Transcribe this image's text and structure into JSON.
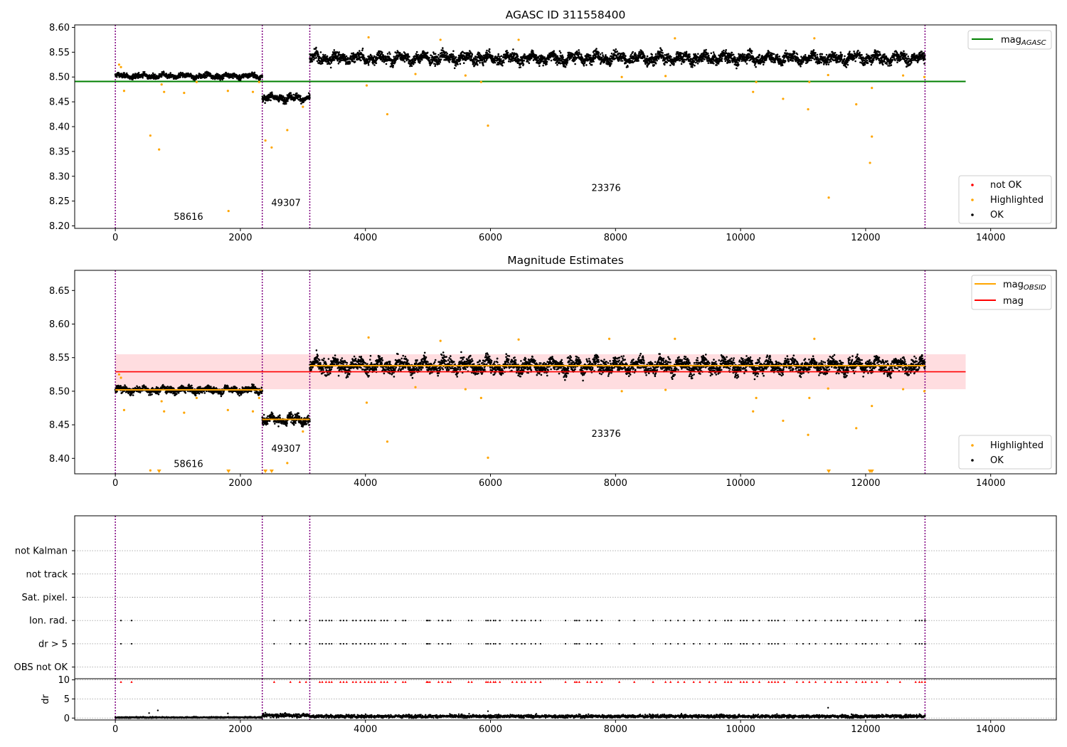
{
  "figure": {
    "title": "AGASC ID 311558400",
    "colors": {
      "ok": "#000000",
      "highlighted": "#ffa500",
      "not_ok": "#ff0000",
      "agasc_line": "#008000",
      "mag_line": "#ff0000",
      "obsid_line": "#ffa500",
      "band": "#ffdde0",
      "obs_boundary": "#800080"
    }
  },
  "chart_data": [
    {
      "type": "scatter",
      "title": "AGASC ID 311558400",
      "xlabel": "",
      "ylabel": "",
      "xlim": [
        -650,
        15050
      ],
      "ylim": [
        8.195,
        8.605
      ],
      "xticks": [
        0,
        2000,
        4000,
        6000,
        8000,
        10000,
        12000,
        14000
      ],
      "yticks": [
        8.2,
        8.25,
        8.3,
        8.35,
        8.4,
        8.45,
        8.5,
        8.55,
        8.6
      ],
      "grid": false,
      "obs_boundaries": [
        0,
        2350,
        3110,
        12950
      ],
      "segments": [
        {
          "obsid": "58616",
          "x_range": [
            0,
            2350
          ],
          "mean": 8.502,
          "scatter": 0.005
        },
        {
          "obsid": "49307",
          "x_range": [
            2350,
            3110
          ],
          "mean": 8.458,
          "scatter": 0.007
        },
        {
          "obsid": "23376",
          "x_range": [
            3110,
            12950
          ],
          "mean": 8.538,
          "scatter": 0.011
        }
      ],
      "obsid_labels": [
        {
          "text": "58616",
          "x": 1170,
          "y": 8.212
        },
        {
          "text": "49307",
          "x": 2730,
          "y": 8.24
        },
        {
          "text": "23376",
          "x": 7850,
          "y": 8.27
        }
      ],
      "reference_lines": [
        {
          "name": "mag_AGASC",
          "y": 8.491,
          "x_range": [
            0,
            13600
          ]
        }
      ],
      "highlighted_points": [
        [
          60,
          8.525
        ],
        [
          90,
          8.52
        ],
        [
          140,
          8.472
        ],
        [
          560,
          8.382
        ],
        [
          700,
          8.354
        ],
        [
          740,
          8.485
        ],
        [
          780,
          8.47
        ],
        [
          1100,
          8.468
        ],
        [
          1300,
          8.49
        ],
        [
          1800,
          8.472
        ],
        [
          1810,
          8.23
        ],
        [
          2200,
          8.47
        ],
        [
          2300,
          8.49
        ],
        [
          2400,
          8.372
        ],
        [
          2500,
          8.358
        ],
        [
          2750,
          8.393
        ],
        [
          3000,
          8.44
        ],
        [
          4020,
          8.483
        ],
        [
          4050,
          8.58
        ],
        [
          4350,
          8.425
        ],
        [
          4800,
          8.506
        ],
        [
          5200,
          8.575
        ],
        [
          5600,
          8.503
        ],
        [
          5850,
          8.49
        ],
        [
          5960,
          8.402
        ],
        [
          6450,
          8.575
        ],
        [
          8100,
          8.5
        ],
        [
          8800,
          8.502
        ],
        [
          8950,
          8.578
        ],
        [
          10200,
          8.47
        ],
        [
          10250,
          8.49
        ],
        [
          10680,
          8.456
        ],
        [
          11080,
          8.435
        ],
        [
          11100,
          8.49
        ],
        [
          11180,
          8.578
        ],
        [
          11400,
          8.504
        ],
        [
          11410,
          8.257
        ],
        [
          11850,
          8.445
        ],
        [
          12070,
          8.327
        ],
        [
          12100,
          8.38
        ],
        [
          12100,
          8.478
        ],
        [
          12600,
          8.503
        ],
        [
          12940,
          8.5
        ]
      ],
      "legends": [
        {
          "position": "upper-right",
          "entries": [
            {
              "label": "mag",
              "subscript": "AGASC",
              "kind": "line",
              "color": "#008000"
            }
          ]
        },
        {
          "position": "lower-right",
          "entries": [
            {
              "label": "not OK",
              "kind": "marker",
              "color": "#ff0000"
            },
            {
              "label": "Highlighted",
              "kind": "marker",
              "color": "#ffa500"
            },
            {
              "label": "OK",
              "kind": "marker",
              "color": "#000000"
            }
          ]
        }
      ]
    },
    {
      "type": "scatter",
      "title": "Magnitude Estimates",
      "xlabel": "",
      "ylabel": "",
      "xlim": [
        -650,
        15050
      ],
      "ylim": [
        8.377,
        8.68
      ],
      "xticks": [
        0,
        2000,
        4000,
        6000,
        8000,
        10000,
        12000,
        14000
      ],
      "yticks": [
        8.4,
        8.45,
        8.5,
        8.55,
        8.6,
        8.65
      ],
      "grid": false,
      "obs_boundaries": [
        0,
        2350,
        3110,
        12950
      ],
      "segments": [
        {
          "obsid": "58616",
          "x_range": [
            0,
            2350
          ],
          "mean": 8.502,
          "scatter": 0.005
        },
        {
          "obsid": "49307",
          "x_range": [
            2350,
            3110
          ],
          "mean": 8.458,
          "scatter": 0.007
        },
        {
          "obsid": "23376",
          "x_range": [
            3110,
            12950
          ],
          "mean": 8.538,
          "scatter": 0.011
        }
      ],
      "obsid_labels": [
        {
          "text": "58616",
          "x": 1170,
          "y": 8.387
        },
        {
          "text": "49307",
          "x": 2730,
          "y": 8.41
        },
        {
          "text": "23376",
          "x": 7850,
          "y": 8.432
        }
      ],
      "mag_line": {
        "name": "mag",
        "y": 8.529,
        "x_range": [
          0,
          13600
        ]
      },
      "mag_band": {
        "y_low": 8.503,
        "y_high": 8.555,
        "x_range": [
          0,
          13600
        ]
      },
      "obsid_means": [
        {
          "x_range": [
            0,
            2350
          ],
          "y": 8.502
        },
        {
          "x_range": [
            2350,
            3110
          ],
          "y": 8.458
        },
        {
          "x_range": [
            3110,
            12950
          ],
          "y": 8.538
        }
      ],
      "highlighted_points": [
        [
          60,
          8.525
        ],
        [
          90,
          8.52
        ],
        [
          140,
          8.472
        ],
        [
          560,
          8.382
        ],
        [
          740,
          8.485
        ],
        [
          780,
          8.47
        ],
        [
          1100,
          8.468
        ],
        [
          1300,
          8.49
        ],
        [
          1800,
          8.472
        ],
        [
          2200,
          8.47
        ],
        [
          2300,
          8.49
        ],
        [
          2750,
          8.393
        ],
        [
          3000,
          8.44
        ],
        [
          4020,
          8.483
        ],
        [
          4050,
          8.58
        ],
        [
          4350,
          8.425
        ],
        [
          4800,
          8.506
        ],
        [
          5200,
          8.575
        ],
        [
          5600,
          8.503
        ],
        [
          5850,
          8.49
        ],
        [
          5960,
          8.401
        ],
        [
          6450,
          8.577
        ],
        [
          7900,
          8.578
        ],
        [
          8100,
          8.5
        ],
        [
          8800,
          8.502
        ],
        [
          8950,
          8.578
        ],
        [
          10200,
          8.47
        ],
        [
          10250,
          8.49
        ],
        [
          10680,
          8.456
        ],
        [
          11080,
          8.435
        ],
        [
          11100,
          8.49
        ],
        [
          11180,
          8.578
        ],
        [
          11400,
          8.504
        ],
        [
          11850,
          8.445
        ],
        [
          12100,
          8.478
        ],
        [
          12600,
          8.503
        ],
        [
          12940,
          8.5
        ]
      ],
      "clipped_low_points_x": [
        700,
        1810,
        2400,
        2500,
        11410,
        12070,
        12100
      ],
      "legends": [
        {
          "position": "upper-right",
          "entries": [
            {
              "label": "mag",
              "subscript": "OBSID",
              "kind": "line",
              "color": "#ffa500"
            },
            {
              "label": "mag",
              "kind": "line",
              "color": "#ff0000"
            }
          ]
        },
        {
          "position": "lower-right",
          "entries": [
            {
              "label": "Highlighted",
              "kind": "marker",
              "color": "#ffa500"
            },
            {
              "label": "OK",
              "kind": "marker",
              "color": "#000000"
            }
          ]
        }
      ]
    },
    {
      "type": "scatter",
      "title": "",
      "xlabel": "",
      "ylabel": "",
      "xlim": [
        -650,
        15050
      ],
      "ylim": [
        -0.5,
        6.5
      ],
      "categories": [
        "OBS not OK",
        "dr > 5",
        "Ion. rad.",
        "Sat. pixel.",
        "not track",
        "not Kalman"
      ],
      "grid": "horizontal dotted",
      "flag_x": [
        90,
        260,
        2540,
        2800,
        2950,
        3050,
        3270,
        3310,
        3370,
        3420,
        3460,
        3600,
        3650,
        3700,
        3800,
        3850,
        3920,
        3990,
        4050,
        4100,
        4150,
        4250,
        4300,
        4350,
        4480,
        4600,
        4640,
        4980,
        5000,
        5030,
        5170,
        5230,
        5320,
        5360,
        5650,
        5700,
        5930,
        5960,
        6000,
        6050,
        6080,
        6150,
        6350,
        6420,
        6500,
        6550,
        6650,
        6720,
        6800,
        7200,
        7350,
        7380,
        7420,
        7550,
        7600,
        7700,
        7780,
        8060,
        8300,
        8600,
        8800,
        8880,
        9000,
        9100,
        9250,
        9350,
        9500,
        9600,
        9750,
        9800,
        9850,
        10000,
        10050,
        10100,
        10200,
        10300,
        10450,
        10500,
        10550,
        10600,
        10700,
        10900,
        11000,
        11100,
        11200,
        11350,
        11450,
        11550,
        11600,
        11700,
        11850,
        11950,
        12000,
        12100,
        12180,
        12350,
        12550,
        12800,
        12860,
        12900,
        12950
      ]
    },
    {
      "type": "scatter",
      "title": "",
      "xlabel": "",
      "ylabel": "dr",
      "xlim": [
        -650,
        15050
      ],
      "ylim": [
        -0.5,
        10.3
      ],
      "xticks": [
        0,
        2000,
        4000,
        6000,
        8000,
        10000,
        12000,
        14000
      ],
      "yticks": [
        0,
        5,
        10
      ],
      "grid": "horizontal dotted",
      "clipped_marker_y": 9.5,
      "clipped_marker_color": "#ff0000",
      "segments": [
        {
          "x_range": [
            0,
            2350
          ],
          "mean": 0.15,
          "scatter": 0.12
        },
        {
          "x_range": [
            2350,
            3110
          ],
          "mean": 0.7,
          "scatter": 0.35
        },
        {
          "x_range": [
            3110,
            12950
          ],
          "mean": 0.45,
          "scatter": 0.3
        }
      ],
      "outliers": [
        [
          540,
          1.3
        ],
        [
          680,
          2.0
        ],
        [
          1800,
          1.2
        ],
        [
          2400,
          1.4
        ],
        [
          5960,
          1.8
        ],
        [
          11400,
          2.7
        ]
      ]
    }
  ]
}
